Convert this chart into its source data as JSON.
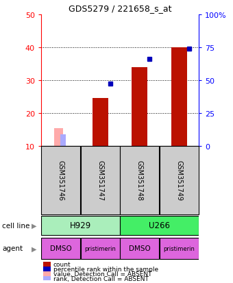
{
  "title": "GDS5279 / 221658_s_at",
  "samples": [
    "GSM351746",
    "GSM351747",
    "GSM351748",
    "GSM351749"
  ],
  "count_values": [
    null,
    24.5,
    34.0,
    40.0
  ],
  "percentile_values": [
    null,
    29.0,
    36.5,
    39.5
  ],
  "absent_count_values": [
    15.5,
    null,
    null,
    null
  ],
  "absent_rank_values": [
    13.5,
    null,
    null,
    null
  ],
  "cell_line_groups": [
    {
      "start": 0,
      "end": 1,
      "label": "H929",
      "color": "#AAEEBB"
    },
    {
      "start": 2,
      "end": 3,
      "label": "U266",
      "color": "#44EE66"
    }
  ],
  "agent_labels": [
    "DMSO",
    "pristimerin",
    "DMSO",
    "pristimerin"
  ],
  "agent_color": "#DD66DD",
  "left_ylim": [
    10,
    50
  ],
  "right_ylim": [
    0,
    100
  ],
  "left_yticks": [
    10,
    20,
    30,
    40,
    50
  ],
  "right_yticks": [
    0,
    25,
    50,
    75,
    100
  ],
  "right_yticklabels": [
    "0",
    "25",
    "50",
    "75",
    "100%"
  ],
  "dotted_lines": [
    20,
    30,
    40
  ],
  "color_count": "#BB1100",
  "color_percentile": "#0000BB",
  "color_absent_count": "#FFAAAA",
  "color_absent_rank": "#AAAAFF",
  "bar_width": 0.4,
  "legend_items": [
    {
      "color": "#BB1100",
      "label": "count"
    },
    {
      "color": "#0000BB",
      "label": "percentile rank within the sample"
    },
    {
      "color": "#FFAAAA",
      "label": "value, Detection Call = ABSENT"
    },
    {
      "color": "#AAAAFF",
      "label": "rank, Detection Call = ABSENT"
    }
  ],
  "cell_line_label": "cell line",
  "agent_label": "agent",
  "sample_box_color": "#CCCCCC",
  "background_color": "#FFFFFF"
}
